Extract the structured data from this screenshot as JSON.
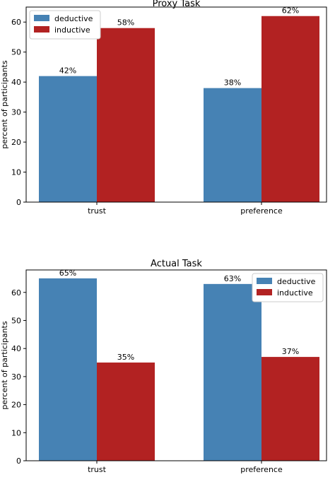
{
  "colors": {
    "deductive": "#4682b4",
    "inductive": "#b22222",
    "axis": "#000000",
    "legend_border": "#cccccc",
    "background": "#ffffff"
  },
  "chart_data": [
    {
      "type": "bar",
      "title": "Proxy Task",
      "xlabel": "",
      "ylabel": "percent of participants",
      "categories": [
        "trust",
        "preference"
      ],
      "series": [
        {
          "name": "deductive",
          "values": [
            42,
            38
          ],
          "labels": [
            "42%",
            "38%"
          ]
        },
        {
          "name": "inductive",
          "values": [
            58,
            62
          ],
          "labels": [
            "58%",
            "62%"
          ]
        }
      ],
      "ylim": [
        0,
        65
      ],
      "yticks": [
        0,
        10,
        20,
        30,
        40,
        50,
        60
      ],
      "ytick_labels": [
        "0",
        "10",
        "20",
        "30",
        "40",
        "50",
        "60"
      ],
      "grid": false,
      "legend": "upper-left"
    },
    {
      "type": "bar",
      "title": "Actual Task",
      "xlabel": "",
      "ylabel": "percent of participants",
      "categories": [
        "trust",
        "preference"
      ],
      "series": [
        {
          "name": "deductive",
          "values": [
            65,
            63
          ],
          "labels": [
            "65%",
            "63%"
          ]
        },
        {
          "name": "inductive",
          "values": [
            35,
            37
          ],
          "labels": [
            "35%",
            "37%"
          ]
        }
      ],
      "ylim": [
        0,
        68
      ],
      "yticks": [
        0,
        10,
        20,
        30,
        40,
        50,
        60
      ],
      "ytick_labels": [
        "0",
        "10",
        "20",
        "30",
        "40",
        "50",
        "60"
      ],
      "grid": false,
      "legend": "upper-right"
    }
  ]
}
